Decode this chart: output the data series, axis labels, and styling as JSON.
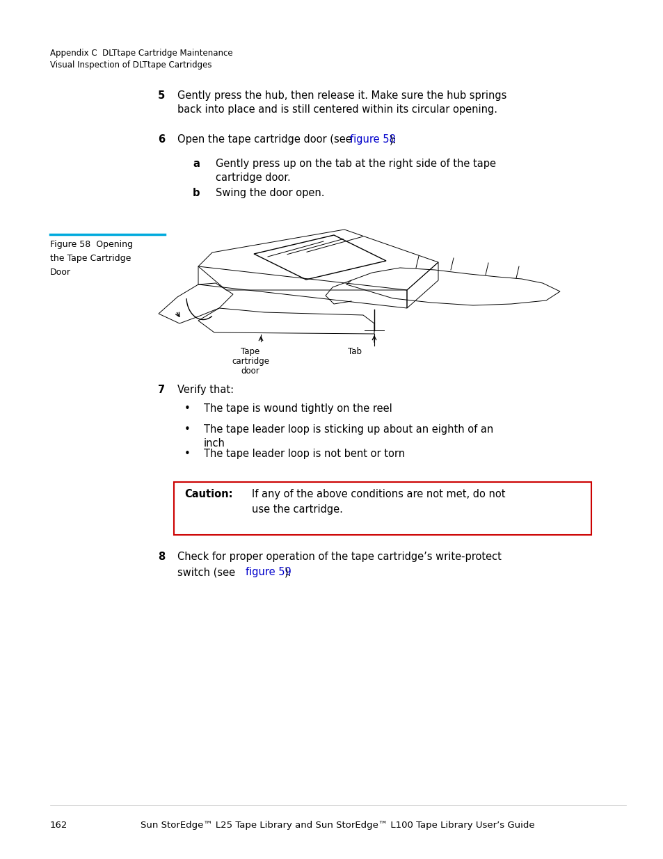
{
  "background_color": "#ffffff",
  "page_width": 9.54,
  "page_height": 12.35,
  "header_line1": "Appendix C  DLTtape Cartridge Maintenance",
  "header_line2": "Visual Inspection of DLTtape Cartridges",
  "step5_number": "5",
  "step5_text": "Gently press the hub, then release it. Make sure the hub springs\nback into place and is still centered within its circular opening.",
  "step6_number": "6",
  "step6_text_pre": "Open the tape cartridge door (see ",
  "step6_link": "figure 58",
  "step6_text_post": "):",
  "step6a_letter": "a",
  "step6a_text": "Gently press up on the tab at the right side of the tape\ncartridge door.",
  "step6b_letter": "b",
  "step6b_text": "Swing the door open.",
  "figure_caption_line1": "Figure 58  Opening",
  "figure_caption_line2": "the Tape Cartridge",
  "figure_caption_line3": "Door",
  "figure_caption_bar_color": "#00aadd",
  "step7_number": "7",
  "step7_text": "Verify that:",
  "bullet1": "The tape is wound tightly on the reel",
  "bullet2": "The tape leader loop is sticking up about an eighth of an\ninch",
  "bullet3": "The tape leader loop is not bent or torn",
  "caution_label": "Caution:",
  "caution_text_line1": "If any of the above conditions are not met, do not",
  "caution_text_line2": "use the cartridge.",
  "caution_border_color": "#cc0000",
  "step8_number": "8",
  "step8_link": "figure 59",
  "step8_text_post": ").",
  "footer_page": "162",
  "footer_text": "Sun StorEdge™ L25 Tape Library and Sun StorEdge™ L100 Tape Library User’s Guide",
  "link_color": "#0000cc",
  "text_color": "#000000",
  "font_size_header": 8.5,
  "font_size_body": 10.5,
  "font_size_caption": 9.0,
  "font_size_footer": 9.5
}
